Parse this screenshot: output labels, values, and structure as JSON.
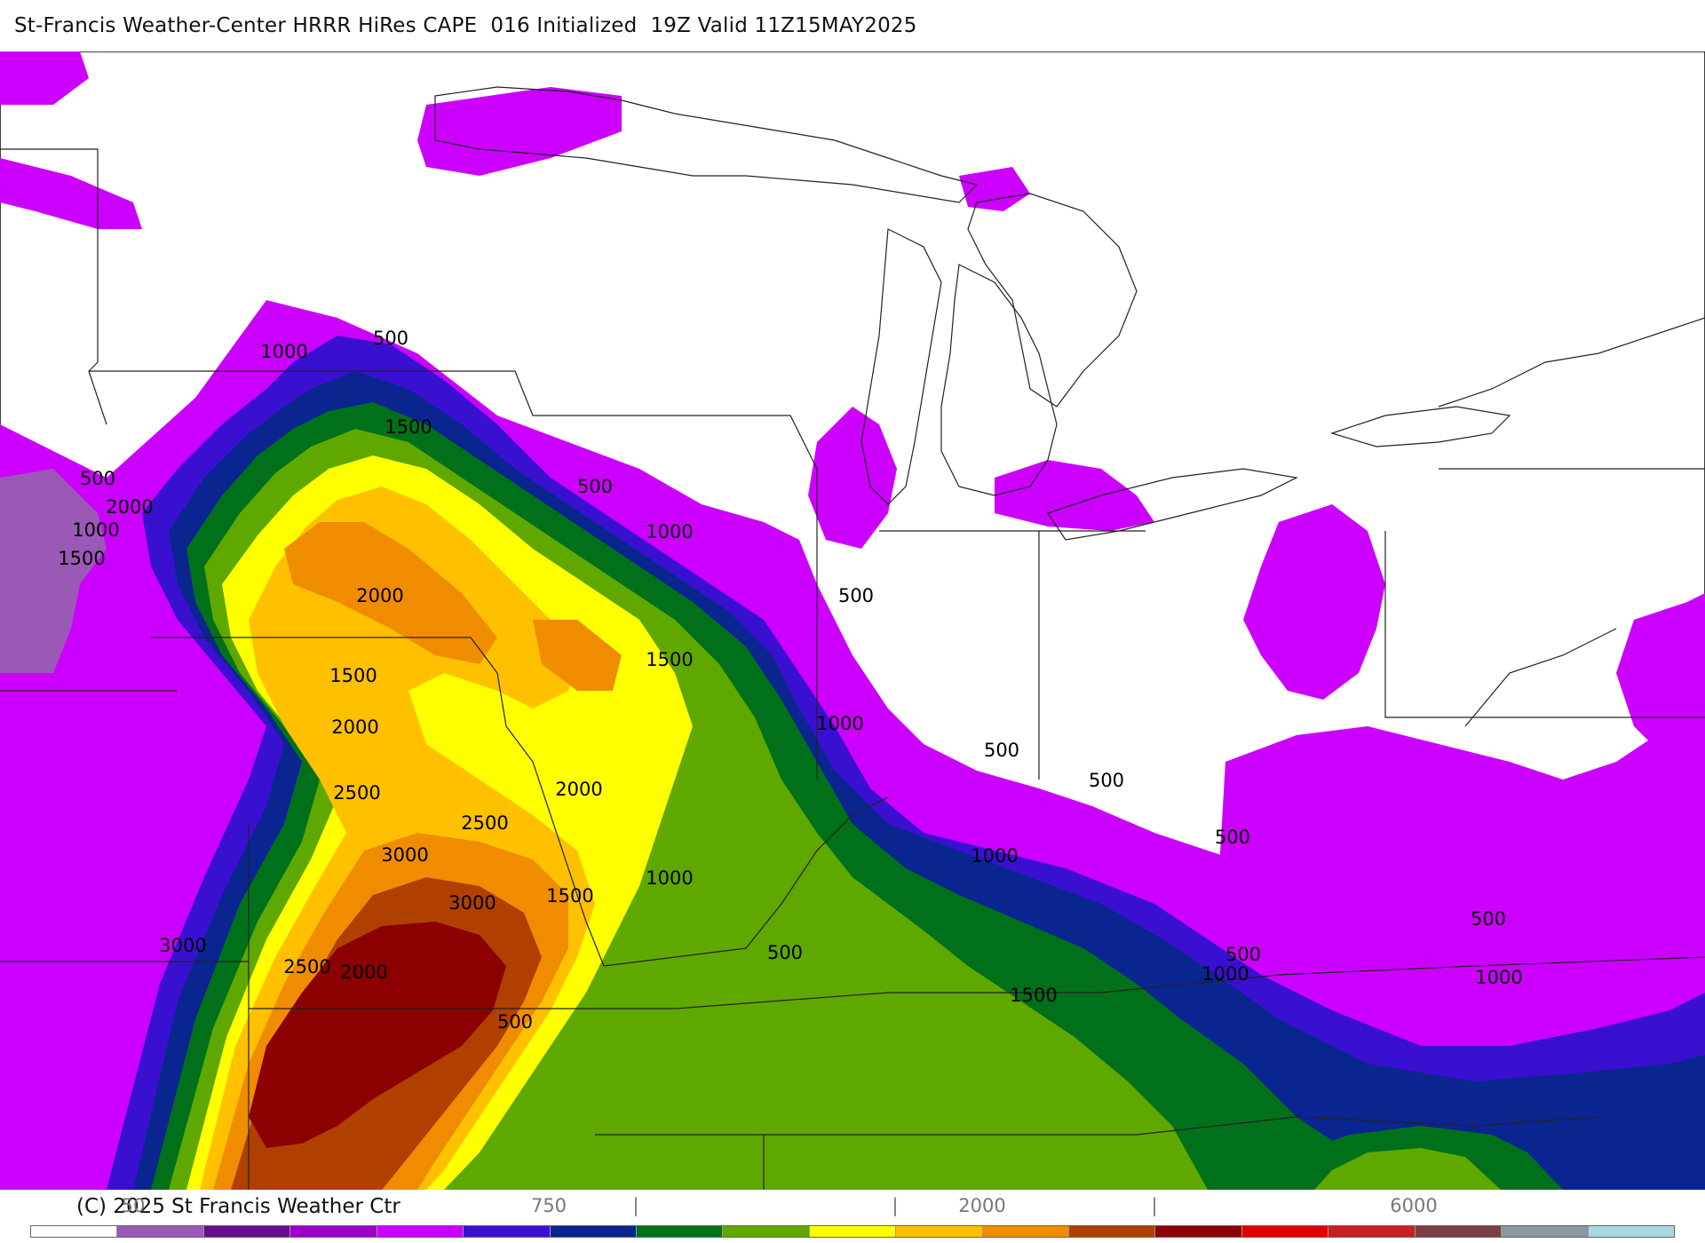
{
  "header": {
    "title": "St-Francis Weather-Center HRRR HiRes CAPE  016 Initialized  19Z Valid 11Z15MAY2025"
  },
  "footer": {
    "copyright": "(C) 2025 St Francis Weather Ctr"
  },
  "colorbar": {
    "tick_labels": [
      "50",
      "750",
      "|",
      "|",
      "2000",
      "|",
      "6000"
    ],
    "colors": [
      "#ffffff",
      "#9b59b6",
      "#6a0a8c",
      "#9b00c8",
      "#cc00ff",
      "#3a10d0",
      "#0a2590",
      "#00711a",
      "#5ea800",
      "#ffff00",
      "#ffc000",
      "#f08c00",
      "#b04000",
      "#8b0000",
      "#e00000",
      "#c82020",
      "#7a4040",
      "#8899a0",
      "#a8d8e0"
    ]
  },
  "map": {
    "contour_labels": [
      "500",
      "1000",
      "1500",
      "500",
      "2000",
      "1000",
      "1500",
      "2000",
      "500",
      "500",
      "1000",
      "1500",
      "1500",
      "2000",
      "2500",
      "2000",
      "2500",
      "3000",
      "3000",
      "1000",
      "1000",
      "500",
      "500",
      "1000",
      "500",
      "1500",
      "3000",
      "2500",
      "2000",
      "500",
      "500",
      "500",
      "1500",
      "1000",
      "500",
      "1000"
    ],
    "fill_colors": {
      "light_purple": "#9b59b6",
      "dark_purple": "#6a0a8c",
      "magenta": "#cc00ff",
      "violet": "#9b00c8",
      "blue": "#3a10d0",
      "navy": "#0a2590",
      "dark_green": "#00711a",
      "green": "#5ea800",
      "yellow": "#ffff00",
      "light_orange": "#ffc000",
      "orange": "#f08c00",
      "rust": "#b04000",
      "dark_red": "#8b0000"
    }
  }
}
